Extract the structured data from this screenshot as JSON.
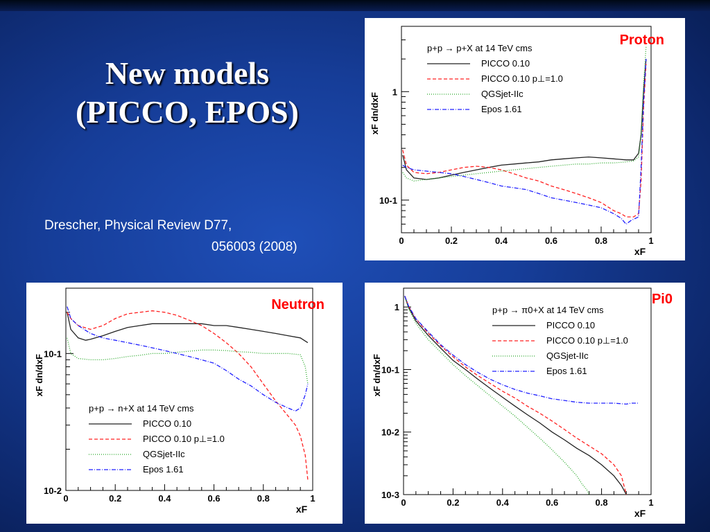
{
  "slide": {
    "title_line1": "New models",
    "title_line2": "(PICCO, EPOS)",
    "reference_line1": "Drescher, Physical Review D77,",
    "reference_line2": "056003 (2008)"
  },
  "chart_data": [
    {
      "type": "line",
      "corner_label": "Proton",
      "title": "p+p → p+X at 14 TeV cms",
      "xlabel": "xF",
      "ylabel": "xF dn/dxF",
      "xlim": [
        0,
        1
      ],
      "ylim": [
        0.05,
        4
      ],
      "yscale": "log",
      "xticks": [
        "0",
        "0.2",
        "0.4",
        "0.6",
        "0.8",
        "1"
      ],
      "yticks": [
        {
          "value": 1,
          "label": "1"
        },
        {
          "value": 0.1,
          "label": "10-1"
        }
      ],
      "legend_position": "top-right",
      "series": [
        {
          "name": "PICCO 0.10",
          "color": "#222222",
          "dash": "",
          "x": [
            0.005,
            0.02,
            0.05,
            0.1,
            0.15,
            0.2,
            0.25,
            0.3,
            0.35,
            0.4,
            0.45,
            0.5,
            0.55,
            0.6,
            0.65,
            0.7,
            0.75,
            0.8,
            0.85,
            0.9,
            0.93,
            0.95,
            0.96,
            0.97,
            0.98
          ],
          "y": [
            0.26,
            0.19,
            0.16,
            0.155,
            0.16,
            0.17,
            0.18,
            0.19,
            0.2,
            0.21,
            0.215,
            0.22,
            0.225,
            0.235,
            0.24,
            0.245,
            0.25,
            0.245,
            0.24,
            0.235,
            0.235,
            0.27,
            0.4,
            1.0,
            2.0
          ]
        },
        {
          "name": "PICCO 0.10 p⊥=1.0",
          "color": "#ff2020",
          "dash": "5,3",
          "x": [
            0.005,
            0.02,
            0.05,
            0.1,
            0.15,
            0.2,
            0.25,
            0.3,
            0.35,
            0.4,
            0.45,
            0.5,
            0.55,
            0.6,
            0.65,
            0.7,
            0.75,
            0.8,
            0.85,
            0.88,
            0.9,
            0.93,
            0.95,
            0.96,
            0.97,
            0.98
          ],
          "y": [
            0.29,
            0.21,
            0.18,
            0.175,
            0.18,
            0.19,
            0.2,
            0.205,
            0.2,
            0.19,
            0.175,
            0.16,
            0.15,
            0.135,
            0.125,
            0.115,
            0.105,
            0.095,
            0.08,
            0.075,
            0.07,
            0.07,
            0.075,
            0.15,
            0.7,
            1.8
          ]
        },
        {
          "name": "QGSjet-IIc",
          "color": "#28a828",
          "dash": "1,2",
          "x": [
            0.005,
            0.02,
            0.05,
            0.1,
            0.15,
            0.2,
            0.25,
            0.3,
            0.35,
            0.4,
            0.45,
            0.5,
            0.55,
            0.6,
            0.65,
            0.7,
            0.75,
            0.8,
            0.85,
            0.9,
            0.93,
            0.95,
            0.96,
            0.97,
            0.98
          ],
          "y": [
            0.18,
            0.16,
            0.15,
            0.155,
            0.16,
            0.165,
            0.17,
            0.175,
            0.18,
            0.185,
            0.19,
            0.195,
            0.2,
            0.205,
            0.21,
            0.215,
            0.215,
            0.22,
            0.22,
            0.225,
            0.23,
            0.25,
            0.4,
            1.2,
            2.6
          ]
        },
        {
          "name": "Epos 1.61",
          "color": "#2020ff",
          "dash": "6,2,1,2",
          "x": [
            0.005,
            0.02,
            0.05,
            0.1,
            0.15,
            0.2,
            0.25,
            0.3,
            0.35,
            0.4,
            0.45,
            0.5,
            0.55,
            0.6,
            0.65,
            0.7,
            0.75,
            0.8,
            0.85,
            0.88,
            0.9,
            0.92,
            0.95,
            0.96,
            0.97,
            0.98
          ],
          "y": [
            0.21,
            0.2,
            0.19,
            0.185,
            0.18,
            0.175,
            0.165,
            0.155,
            0.145,
            0.135,
            0.13,
            0.125,
            0.115,
            0.105,
            0.1,
            0.095,
            0.09,
            0.085,
            0.075,
            0.068,
            0.06,
            0.065,
            0.07,
            0.2,
            0.8,
            2.0
          ]
        }
      ]
    },
    {
      "type": "line",
      "corner_label": "Neutron",
      "title": "p+p → n+X at 14 TeV cms",
      "xlabel": "xF",
      "ylabel": "xF dn/dxF",
      "xlim": [
        0,
        1
      ],
      "ylim": [
        0.01,
        0.3
      ],
      "yscale": "log",
      "xticks": [
        "0",
        "0.2",
        "0.4",
        "0.6",
        "0.8",
        "1"
      ],
      "yticks": [
        {
          "value": 0.1,
          "label": "10-1"
        },
        {
          "value": 0.01,
          "label": "10-2"
        }
      ],
      "legend_position": "bottom-left",
      "series": [
        {
          "name": "PICCO 0.10",
          "color": "#222222",
          "dash": "",
          "x": [
            0.005,
            0.02,
            0.05,
            0.08,
            0.1,
            0.15,
            0.2,
            0.25,
            0.3,
            0.35,
            0.4,
            0.45,
            0.5,
            0.55,
            0.6,
            0.65,
            0.7,
            0.75,
            0.8,
            0.85,
            0.9,
            0.95,
            0.98
          ],
          "y": [
            0.2,
            0.15,
            0.13,
            0.125,
            0.127,
            0.135,
            0.145,
            0.155,
            0.16,
            0.165,
            0.165,
            0.165,
            0.165,
            0.165,
            0.16,
            0.16,
            0.155,
            0.15,
            0.145,
            0.14,
            0.135,
            0.13,
            0.12
          ]
        },
        {
          "name": "PICCO 0.10 p⊥=1.0",
          "color": "#ff2020",
          "dash": "5,3",
          "x": [
            0.005,
            0.02,
            0.05,
            0.1,
            0.15,
            0.2,
            0.25,
            0.3,
            0.35,
            0.4,
            0.45,
            0.5,
            0.55,
            0.6,
            0.65,
            0.7,
            0.75,
            0.8,
            0.85,
            0.9,
            0.93,
            0.95,
            0.97,
            0.98
          ],
          "y": [
            0.2,
            0.18,
            0.16,
            0.15,
            0.16,
            0.18,
            0.195,
            0.2,
            0.205,
            0.2,
            0.19,
            0.175,
            0.16,
            0.14,
            0.12,
            0.1,
            0.08,
            0.06,
            0.045,
            0.035,
            0.03,
            0.025,
            0.018,
            0.012
          ]
        },
        {
          "name": "QGSjet-IIc",
          "color": "#28a828",
          "dash": "1,2",
          "x": [
            0.005,
            0.02,
            0.05,
            0.1,
            0.15,
            0.2,
            0.25,
            0.3,
            0.35,
            0.4,
            0.45,
            0.5,
            0.55,
            0.6,
            0.65,
            0.7,
            0.75,
            0.8,
            0.85,
            0.9,
            0.95,
            0.97,
            0.98
          ],
          "y": [
            0.13,
            0.1,
            0.092,
            0.09,
            0.09,
            0.092,
            0.095,
            0.097,
            0.1,
            0.1,
            0.102,
            0.104,
            0.106,
            0.106,
            0.105,
            0.103,
            0.102,
            0.1,
            0.1,
            0.1,
            0.098,
            0.08,
            0.06
          ]
        },
        {
          "name": "Epos 1.61",
          "color": "#2020ff",
          "dash": "6,2,1,2",
          "x": [
            0.005,
            0.02,
            0.05,
            0.1,
            0.15,
            0.2,
            0.25,
            0.3,
            0.35,
            0.4,
            0.45,
            0.5,
            0.55,
            0.6,
            0.65,
            0.7,
            0.75,
            0.8,
            0.85,
            0.9,
            0.93,
            0.95,
            0.97,
            0.98
          ],
          "y": [
            0.22,
            0.18,
            0.16,
            0.14,
            0.13,
            0.125,
            0.12,
            0.115,
            0.11,
            0.105,
            0.1,
            0.095,
            0.09,
            0.085,
            0.075,
            0.065,
            0.058,
            0.05,
            0.044,
            0.04,
            0.038,
            0.04,
            0.05,
            0.06
          ]
        }
      ]
    },
    {
      "type": "line",
      "corner_label": "Pi0",
      "title": "p+p → π0+X at 14 TeV cms",
      "xlabel": "xF",
      "ylabel": "xF dn/dxF",
      "xlim": [
        0,
        1
      ],
      "ylim": [
        0.001,
        2
      ],
      "yscale": "log",
      "xticks": [
        "0",
        "0.2",
        "0.4",
        "0.6",
        "0.8",
        "1"
      ],
      "yticks": [
        {
          "value": 1,
          "label": "1"
        },
        {
          "value": 0.1,
          "label": "10-1"
        },
        {
          "value": 0.01,
          "label": "10-2"
        },
        {
          "value": 0.001,
          "label": "10-3"
        }
      ],
      "legend_position": "top-right",
      "series": [
        {
          "name": "PICCO 0.10",
          "color": "#222222",
          "dash": "",
          "x": [
            0.005,
            0.02,
            0.05,
            0.1,
            0.15,
            0.2,
            0.25,
            0.3,
            0.35,
            0.4,
            0.45,
            0.5,
            0.55,
            0.6,
            0.65,
            0.7,
            0.75,
            0.8,
            0.85,
            0.88,
            0.9
          ],
          "y": [
            1.5,
            1.0,
            0.6,
            0.35,
            0.22,
            0.14,
            0.1,
            0.07,
            0.05,
            0.036,
            0.026,
            0.019,
            0.014,
            0.01,
            0.0075,
            0.0055,
            0.0042,
            0.003,
            0.002,
            0.0014,
            0.001
          ]
        },
        {
          "name": "PICCO 0.10 p⊥=1.0",
          "color": "#ff2020",
          "dash": "5,3",
          "x": [
            0.005,
            0.02,
            0.05,
            0.1,
            0.15,
            0.2,
            0.25,
            0.3,
            0.35,
            0.4,
            0.45,
            0.5,
            0.55,
            0.6,
            0.65,
            0.7,
            0.75,
            0.8,
            0.85,
            0.88,
            0.9
          ],
          "y": [
            1.5,
            1.05,
            0.65,
            0.38,
            0.24,
            0.16,
            0.11,
            0.08,
            0.06,
            0.045,
            0.035,
            0.026,
            0.02,
            0.015,
            0.011,
            0.008,
            0.006,
            0.0045,
            0.003,
            0.002,
            0.001
          ]
        },
        {
          "name": "QGSjet-IIc",
          "color": "#28a828",
          "dash": "1,2",
          "x": [
            0.005,
            0.02,
            0.05,
            0.1,
            0.15,
            0.2,
            0.25,
            0.3,
            0.35,
            0.4,
            0.45,
            0.5,
            0.55,
            0.6,
            0.65,
            0.7,
            0.72,
            0.74,
            0.75
          ],
          "y": [
            1.45,
            0.95,
            0.55,
            0.3,
            0.19,
            0.12,
            0.08,
            0.055,
            0.038,
            0.026,
            0.018,
            0.012,
            0.008,
            0.0052,
            0.0033,
            0.002,
            0.0015,
            0.0012,
            0.001
          ]
        },
        {
          "name": "Epos 1.61",
          "color": "#2020ff",
          "dash": "6,2,1,2",
          "x": [
            0.005,
            0.02,
            0.05,
            0.1,
            0.15,
            0.2,
            0.25,
            0.3,
            0.35,
            0.4,
            0.45,
            0.5,
            0.55,
            0.6,
            0.65,
            0.7,
            0.75,
            0.8,
            0.85,
            0.9,
            0.92,
            0.95
          ],
          "y": [
            1.5,
            1.05,
            0.65,
            0.4,
            0.25,
            0.17,
            0.12,
            0.09,
            0.07,
            0.057,
            0.048,
            0.042,
            0.038,
            0.034,
            0.032,
            0.03,
            0.029,
            0.029,
            0.029,
            0.028,
            0.029,
            0.029
          ]
        }
      ]
    }
  ]
}
